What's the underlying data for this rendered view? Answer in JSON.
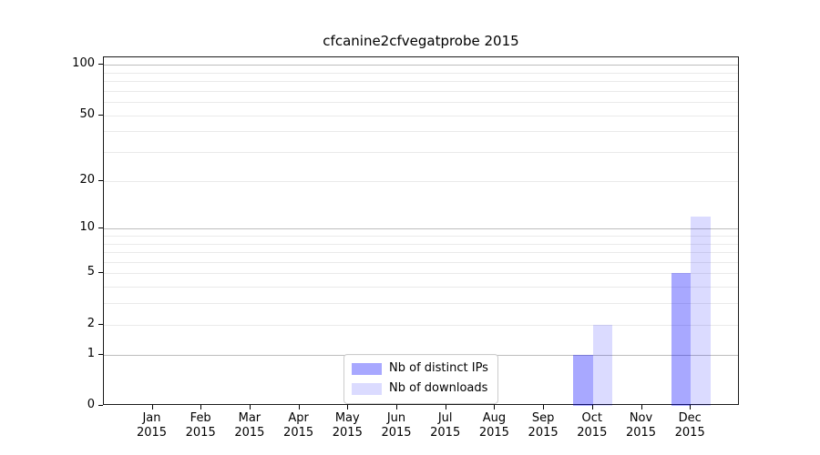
{
  "title": "cfcanine2cfvegatprobe 2015",
  "chart_data": {
    "type": "bar",
    "x_categories": [
      "Jan",
      "Feb",
      "Mar",
      "Apr",
      "May",
      "Jun",
      "Jul",
      "Aug",
      "Sep",
      "Oct",
      "Nov",
      "Dec"
    ],
    "x_year_label": "2015",
    "series": [
      {
        "name": "Nb of distinct IPs",
        "color": "rgba(0,0,255,0.34)",
        "values": [
          0,
          0,
          0,
          0,
          0,
          0,
          0,
          0,
          0,
          1,
          0,
          5
        ]
      },
      {
        "name": "Nb of downloads",
        "color": "rgba(0,0,255,0.14)",
        "values": [
          0,
          0,
          0,
          0,
          0,
          0,
          0,
          0,
          0,
          2,
          0,
          12
        ]
      }
    ],
    "y_axis": {
      "scale": "log1p",
      "tick_values": [
        0,
        1,
        2,
        5,
        10,
        20,
        50,
        100
      ],
      "major_gridlines": [
        1,
        10,
        100
      ],
      "minor_gridlines": [
        2,
        3,
        4,
        5,
        6,
        7,
        8,
        9,
        20,
        30,
        40,
        50,
        60,
        70,
        80,
        90
      ],
      "ylim": [
        0,
        110
      ]
    },
    "legend": {
      "position": "lower center"
    },
    "grid": true
  },
  "colors": {
    "major_grid": "#bdbdbd",
    "minor_grid": "#eaeaea",
    "spine": "#1a1a1a",
    "text": "#000000"
  }
}
